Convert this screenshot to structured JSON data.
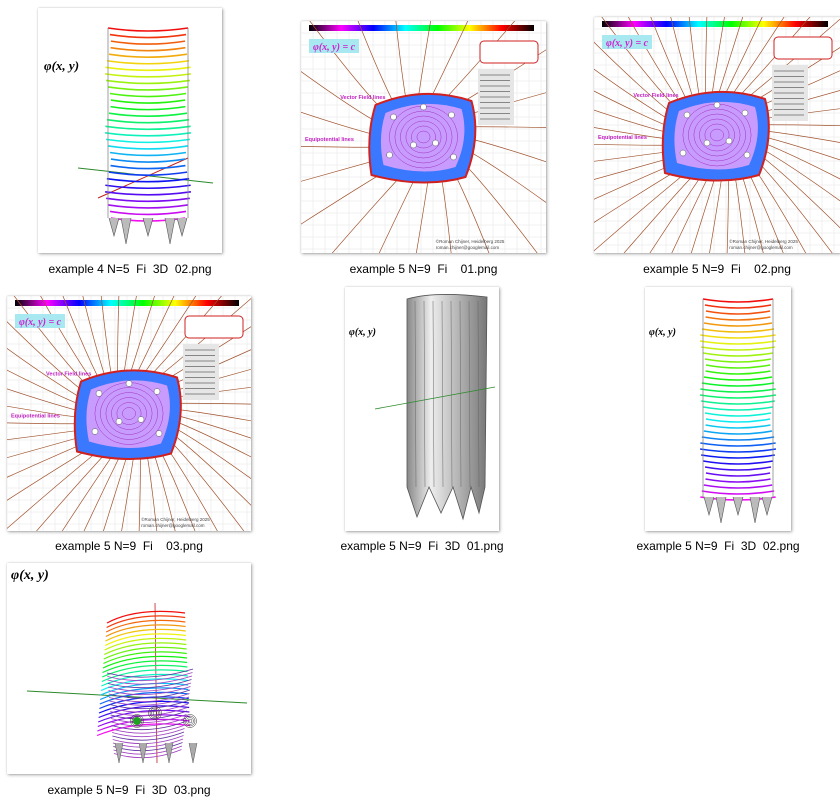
{
  "files": [
    {
      "name": "example 4 N=5  Fi  3D  02.png",
      "kind": "3d-colored",
      "formula": "φ(x, y)"
    },
    {
      "name": "example 5 N=9  Fi    01.png",
      "kind": "2d-plot",
      "formula": "φ(x, y) = c"
    },
    {
      "name": "example 5 N=9  Fi    02.png",
      "kind": "2d-plot",
      "formula": "φ(x, y) = c"
    },
    {
      "name": "example 5 N=9  Fi    03.png",
      "kind": "2d-plot",
      "formula": "φ(x, y) = c"
    },
    {
      "name": "example 5 N=9  Fi  3D  01.png",
      "kind": "3d-gray",
      "formula": "φ(x, y)"
    },
    {
      "name": "example 5 N=9  Fi  3D  02.png",
      "kind": "3d-colored",
      "formula": "φ(x, y)"
    },
    {
      "name": "example 5 N=9  Fi  3D  03.png",
      "kind": "3d-wide",
      "formula": "φ(x, y)"
    }
  ],
  "plot_labels": {
    "vector_field": "Vector Field lines",
    "equipotential": "Equipotential lines",
    "copyright": "©Roman Chijner, Heidelberg 2025",
    "email": "roman.chijner@googlemail.com"
  },
  "colors": {
    "caption_text": "#000000",
    "field_line": "#a0522d",
    "formula_box": "#a8e8f0",
    "red_box": "#d02020"
  }
}
